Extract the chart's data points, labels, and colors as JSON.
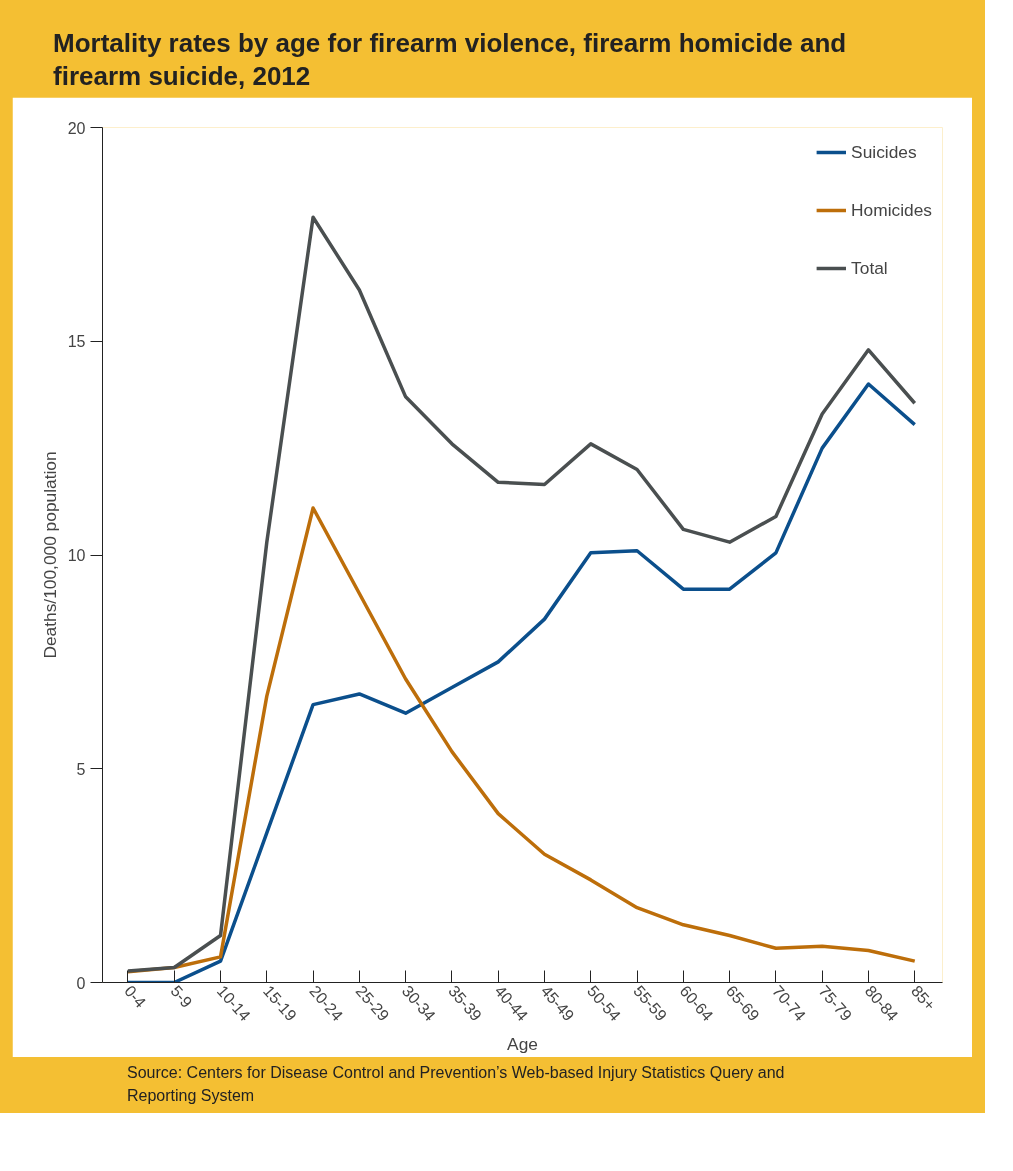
{
  "chart_data": {
    "type": "line",
    "title": "Mortality rates by age for firearm violence, firearm homicide and firearm suicide, 2012",
    "xlabel": "Age",
    "ylabel": "Deaths/100,000 population",
    "categories": [
      "0-4",
      "5-9",
      "10-14",
      "15-19",
      "20-24",
      "25-29",
      "30-34",
      "35-39",
      "40-44",
      "45-49",
      "50-54",
      "55-59",
      "60-64",
      "65-69",
      "70-74",
      "75-79",
      "80-84",
      "85+"
    ],
    "series": [
      {
        "name": "Suicides",
        "color": "#0b4f8c",
        "values": [
          0,
          0,
          0.5,
          3.5,
          6.5,
          6.75,
          6.3,
          6.9,
          7.5,
          8.5,
          10.05,
          10.1,
          9.2,
          9.2,
          10.05,
          12.5,
          14.0,
          13.05
        ]
      },
      {
        "name": "Homicides",
        "color": "#bd6e0a",
        "values": [
          0.25,
          0.35,
          0.6,
          6.7,
          11.1,
          9.1,
          7.1,
          5.4,
          3.95,
          3.0,
          2.4,
          1.75,
          1.35,
          1.1,
          0.8,
          0.85,
          0.75,
          0.5
        ]
      },
      {
        "name": "Total",
        "color": "#4a4f50",
        "values": [
          0.27,
          0.35,
          1.1,
          10.3,
          17.9,
          16.2,
          13.7,
          12.6,
          11.7,
          11.65,
          12.6,
          12.0,
          10.6,
          10.3,
          10.9,
          13.3,
          14.8,
          13.55
        ]
      }
    ],
    "ylim": [
      0,
      20
    ],
    "yticks": [
      0,
      5,
      10,
      15,
      20
    ],
    "grid": false,
    "legend": "top right",
    "marker": "none",
    "line_style": "solid",
    "annotations": [
      "Source: Centers for Disease Control and Prevention’s Web-based Injury Statistics Query and Reporting System"
    ]
  }
}
